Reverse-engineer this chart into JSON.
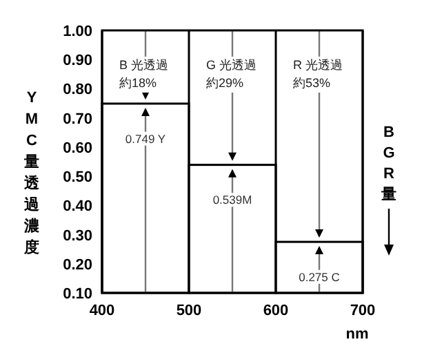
{
  "chart_data": {
    "type": "histogram",
    "bins": [
      400,
      500,
      600,
      700
    ],
    "values": [
      0.749,
      0.539,
      0.275
    ],
    "color": "#ffffff",
    "value_labels": [
      "0.749 Y",
      "0.539M",
      "0.275 C"
    ],
    "xlim": [
      400,
      700
    ],
    "xticks": [
      400,
      500,
      600,
      700
    ],
    "ylim": [
      0.1,
      1.0
    ],
    "yticks": [
      {
        "value": 0.1,
        "label": "0.10"
      },
      {
        "value": 0.2,
        "label": "0.20"
      },
      {
        "value": 0.3,
        "label": "0.30"
      },
      {
        "value": 0.4,
        "label": "0.40"
      },
      {
        "value": 0.5,
        "label": "0.50"
      },
      {
        "value": 0.6,
        "label": "0.60"
      },
      {
        "value": 0.7,
        "label": "0.70"
      },
      {
        "value": 0.8,
        "label": "0.80"
      },
      {
        "value": 0.9,
        "label": "0.90"
      },
      {
        "value": 1.0,
        "label": "1.00"
      }
    ],
    "grid": "x",
    "xlabel": "nm",
    "ylabel": "YMC量透過濃度",
    "y2label": "BGR量",
    "annotations": [
      "B 光透過約18%",
      "G 光透過約29%",
      "R 光透過約53%"
    ]
  }
}
